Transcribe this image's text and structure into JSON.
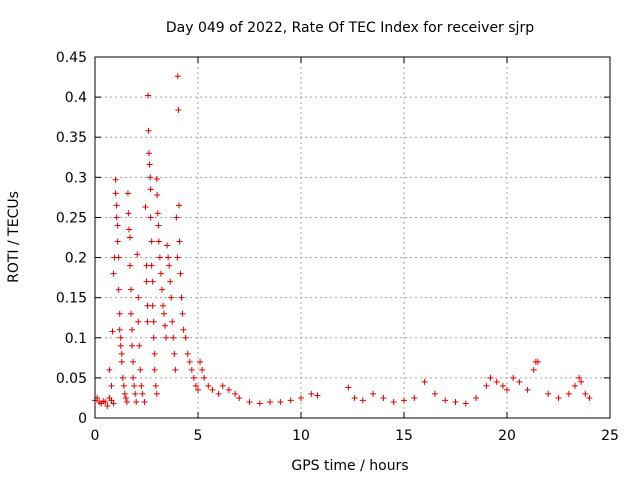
{
  "chart_data": {
    "type": "scatter",
    "title": "Day 049 of 2022, Rate Of TEC Index for receiver sjrp",
    "xlabel": "GPS time / hours",
    "ylabel": "ROTI / TECUs",
    "xlim": [
      0,
      25
    ],
    "ylim": [
      0,
      0.45
    ],
    "x_ticks": [
      "0",
      "5",
      "10",
      "15",
      "20",
      "25"
    ],
    "y_ticks": [
      "0",
      "0.05",
      "0.1",
      "0.15",
      "0.2",
      "0.25",
      "0.3",
      "0.35",
      "0.4",
      "0.45"
    ],
    "grid": true,
    "marker": "+",
    "color": "#e00000",
    "series": [
      {
        "points": [
          [
            0.0,
            0.022
          ],
          [
            0.1,
            0.025
          ],
          [
            0.2,
            0.02
          ],
          [
            0.3,
            0.018
          ],
          [
            0.4,
            0.021
          ],
          [
            0.5,
            0.02
          ],
          [
            0.6,
            0.015
          ],
          [
            0.7,
            0.025
          ],
          [
            0.8,
            0.022
          ],
          [
            0.9,
            0.018
          ],
          [
            0.7,
            0.06
          ],
          [
            0.8,
            0.04
          ],
          [
            0.85,
            0.108
          ],
          [
            0.9,
            0.18
          ],
          [
            0.95,
            0.2
          ],
          [
            1.0,
            0.297
          ],
          [
            1.0,
            0.28
          ],
          [
            1.05,
            0.265
          ],
          [
            1.05,
            0.25
          ],
          [
            1.1,
            0.24
          ],
          [
            1.1,
            0.22
          ],
          [
            1.15,
            0.2
          ],
          [
            1.15,
            0.16
          ],
          [
            1.2,
            0.13
          ],
          [
            1.2,
            0.11
          ],
          [
            1.25,
            0.1
          ],
          [
            1.25,
            0.09
          ],
          [
            1.3,
            0.08
          ],
          [
            1.3,
            0.07
          ],
          [
            1.35,
            0.05
          ],
          [
            1.4,
            0.04
          ],
          [
            1.45,
            0.03
          ],
          [
            1.5,
            0.025
          ],
          [
            1.55,
            0.02
          ],
          [
            1.6,
            0.28
          ],
          [
            1.62,
            0.255
          ],
          [
            1.65,
            0.235
          ],
          [
            1.7,
            0.225
          ],
          [
            1.7,
            0.19
          ],
          [
            1.75,
            0.16
          ],
          [
            1.75,
            0.13
          ],
          [
            1.8,
            0.11
          ],
          [
            1.8,
            0.09
          ],
          [
            1.85,
            0.07
          ],
          [
            1.85,
            0.05
          ],
          [
            1.9,
            0.04
          ],
          [
            1.95,
            0.03
          ],
          [
            2.0,
            0.02
          ],
          [
            2.05,
            0.204
          ],
          [
            2.1,
            0.15
          ],
          [
            2.1,
            0.12
          ],
          [
            2.15,
            0.09
          ],
          [
            2.2,
            0.06
          ],
          [
            2.25,
            0.04
          ],
          [
            2.3,
            0.03
          ],
          [
            2.4,
            0.02
          ],
          [
            2.45,
            0.263
          ],
          [
            2.5,
            0.19
          ],
          [
            2.5,
            0.17
          ],
          [
            2.55,
            0.14
          ],
          [
            2.55,
            0.12
          ],
          [
            2.58,
            0.402
          ],
          [
            2.6,
            0.358
          ],
          [
            2.62,
            0.33
          ],
          [
            2.65,
            0.316
          ],
          [
            2.68,
            0.3
          ],
          [
            2.7,
            0.285
          ],
          [
            2.7,
            0.25
          ],
          [
            2.75,
            0.22
          ],
          [
            2.75,
            0.19
          ],
          [
            2.8,
            0.17
          ],
          [
            2.8,
            0.14
          ],
          [
            2.85,
            0.12
          ],
          [
            2.85,
            0.1
          ],
          [
            2.9,
            0.08
          ],
          [
            2.9,
            0.06
          ],
          [
            2.95,
            0.04
          ],
          [
            3.0,
            0.03
          ],
          [
            3.0,
            0.298
          ],
          [
            3.02,
            0.278
          ],
          [
            3.05,
            0.255
          ],
          [
            3.08,
            0.24
          ],
          [
            3.1,
            0.22
          ],
          [
            3.15,
            0.2
          ],
          [
            3.2,
            0.18
          ],
          [
            3.25,
            0.16
          ],
          [
            3.3,
            0.14
          ],
          [
            3.35,
            0.13
          ],
          [
            3.4,
            0.115
          ],
          [
            3.45,
            0.1
          ],
          [
            3.5,
            0.215
          ],
          [
            3.55,
            0.2
          ],
          [
            3.6,
            0.19
          ],
          [
            3.65,
            0.17
          ],
          [
            3.7,
            0.15
          ],
          [
            3.75,
            0.12
          ],
          [
            3.8,
            0.1
          ],
          [
            3.85,
            0.08
          ],
          [
            3.9,
            0.06
          ],
          [
            3.95,
            0.25
          ],
          [
            4.0,
            0.2
          ],
          [
            4.02,
            0.426
          ],
          [
            4.05,
            0.384
          ],
          [
            4.08,
            0.265
          ],
          [
            4.1,
            0.22
          ],
          [
            4.15,
            0.18
          ],
          [
            4.2,
            0.15
          ],
          [
            4.25,
            0.13
          ],
          [
            4.3,
            0.11
          ],
          [
            4.4,
            0.1
          ],
          [
            4.5,
            0.08
          ],
          [
            4.6,
            0.07
          ],
          [
            4.7,
            0.06
          ],
          [
            4.8,
            0.05
          ],
          [
            4.9,
            0.04
          ],
          [
            5.0,
            0.035
          ],
          [
            5.1,
            0.07
          ],
          [
            5.2,
            0.06
          ],
          [
            5.3,
            0.05
          ],
          [
            5.5,
            0.04
          ],
          [
            5.7,
            0.035
          ],
          [
            6.0,
            0.03
          ],
          [
            6.2,
            0.04
          ],
          [
            6.5,
            0.035
          ],
          [
            6.8,
            0.03
          ],
          [
            7.0,
            0.025
          ],
          [
            7.5,
            0.02
          ],
          [
            8.0,
            0.018
          ],
          [
            8.5,
            0.02
          ],
          [
            9.0,
            0.02
          ],
          [
            9.5,
            0.022
          ],
          [
            10.0,
            0.025
          ],
          [
            10.5,
            0.03
          ],
          [
            10.8,
            0.028
          ],
          [
            12.3,
            0.038
          ],
          [
            12.6,
            0.025
          ],
          [
            13.0,
            0.022
          ],
          [
            13.5,
            0.03
          ],
          [
            14.0,
            0.025
          ],
          [
            14.5,
            0.02
          ],
          [
            15.0,
            0.022
          ],
          [
            15.5,
            0.025
          ],
          [
            16.0,
            0.045
          ],
          [
            16.5,
            0.03
          ],
          [
            17.0,
            0.022
          ],
          [
            17.5,
            0.02
          ],
          [
            18.0,
            0.018
          ],
          [
            18.5,
            0.025
          ],
          [
            19.0,
            0.04
          ],
          [
            19.2,
            0.05
          ],
          [
            19.5,
            0.045
          ],
          [
            19.8,
            0.04
          ],
          [
            20.0,
            0.035
          ],
          [
            20.3,
            0.05
          ],
          [
            20.6,
            0.045
          ],
          [
            21.0,
            0.035
          ],
          [
            21.3,
            0.06
          ],
          [
            21.4,
            0.07
          ],
          [
            21.5,
            0.07
          ],
          [
            22.0,
            0.03
          ],
          [
            22.5,
            0.025
          ],
          [
            23.0,
            0.03
          ],
          [
            23.3,
            0.04
          ],
          [
            23.5,
            0.05
          ],
          [
            23.6,
            0.045
          ],
          [
            23.8,
            0.03
          ],
          [
            24.0,
            0.025
          ]
        ]
      }
    ]
  }
}
